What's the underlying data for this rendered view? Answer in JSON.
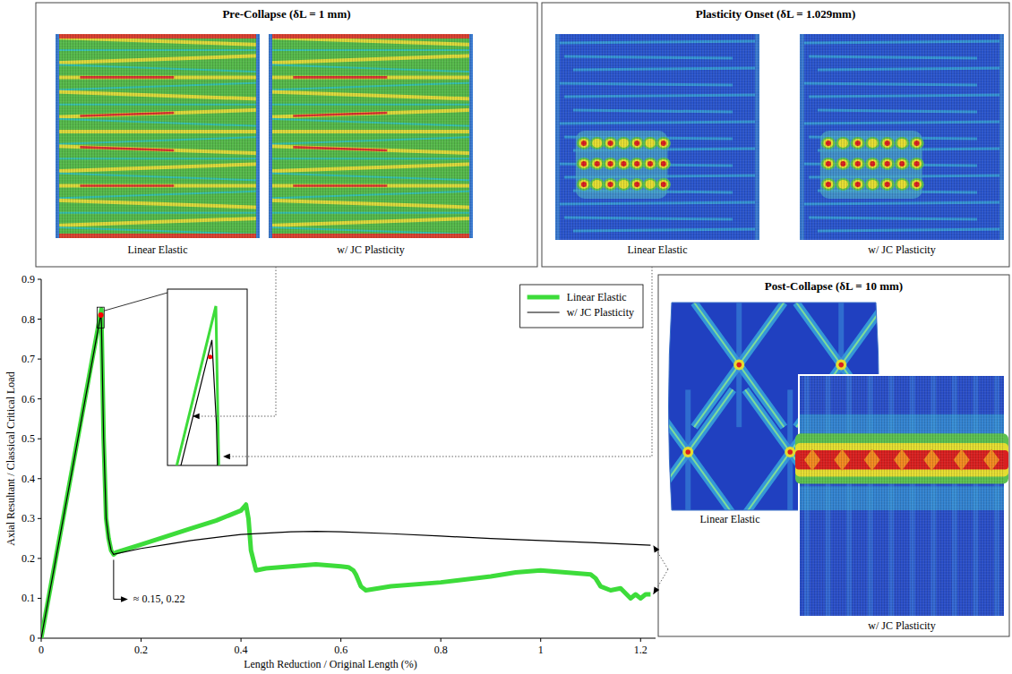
{
  "chart_data": {
    "type": "line",
    "x_label": "Length Reduction / Original Length (%)",
    "y_label": "Axial Resultant / Classical Critical Load",
    "xlim": [
      0,
      1.23
    ],
    "xticks": [
      0,
      0.2,
      0.4,
      0.6,
      0.8,
      1,
      1.2
    ],
    "ylim": [
      0,
      0.9
    ],
    "yticks": [
      0,
      0.1,
      0.2,
      0.3,
      0.4,
      0.5,
      0.6,
      0.7,
      0.8,
      0.9
    ],
    "grid": false,
    "legend": "top-right",
    "series": [
      {
        "name": "Linear Elastic",
        "color": "#3ddc3a",
        "line_style": "solid",
        "x": [
          0,
          0.1205,
          0.1212,
          0.125,
          0.13,
          0.135,
          0.14,
          0.145,
          0.15,
          0.2,
          0.25,
          0.3,
          0.35,
          0.4,
          0.41,
          0.415,
          0.42,
          0.43,
          0.45,
          0.5,
          0.55,
          0.6,
          0.615,
          0.625,
          0.63,
          0.64,
          0.65,
          0.7,
          0.8,
          0.9,
          0.95,
          1.0,
          1.05,
          1.1,
          1.11,
          1.12,
          1.14,
          1.16,
          1.18,
          1.19,
          1.2,
          1.21,
          1.22
        ],
        "values": [
          0,
          0.825,
          0.76,
          0.5,
          0.3,
          0.25,
          0.22,
          0.21,
          0.215,
          0.235,
          0.255,
          0.275,
          0.295,
          0.32,
          0.335,
          0.3,
          0.22,
          0.17,
          0.175,
          0.18,
          0.185,
          0.18,
          0.178,
          0.17,
          0.16,
          0.13,
          0.12,
          0.13,
          0.14,
          0.155,
          0.165,
          0.17,
          0.165,
          0.16,
          0.15,
          0.13,
          0.12,
          0.125,
          0.1,
          0.11,
          0.1,
          0.11,
          0.11
        ]
      },
      {
        "name": "w/ JC Plasticity",
        "color": "#000000",
        "line_style": "solid",
        "x": [
          0,
          0.1198,
          0.1206,
          0.125,
          0.13,
          0.135,
          0.14,
          0.145,
          0.15,
          0.2,
          0.25,
          0.3,
          0.4,
          0.5,
          0.55,
          0.6,
          0.7,
          0.8,
          0.9,
          1.0,
          1.1,
          1.22
        ],
        "values": [
          0,
          0.815,
          0.79,
          0.5,
          0.3,
          0.25,
          0.22,
          0.21,
          0.212,
          0.225,
          0.235,
          0.245,
          0.26,
          0.267,
          0.268,
          0.267,
          0.262,
          0.256,
          0.25,
          0.245,
          0.24,
          0.233
        ]
      }
    ],
    "annotations": [
      {
        "text": "≈ 0.15, 0.22",
        "x": 0.145,
        "y": 0.21
      },
      {
        "x": 0.1195,
        "y": 0.81,
        "color": "#ff0000",
        "marker": "circle"
      }
    ],
    "inset": {
      "xlim": [
        0.112,
        0.126
      ],
      "ylim": [
        0.778,
        0.83
      ]
    }
  },
  "panels": [
    {
      "title": "Pre-Collapse (δL = 1 mm)",
      "captions": [
        "Linear Elastic",
        "w/ JC Plasticity"
      ]
    },
    {
      "title": "Plasticity Onset (δL = 1.029mm)",
      "captions": [
        "Linear Elastic",
        "w/ JC Plasticity"
      ]
    },
    {
      "title": "Post-Collapse (δL = 10 mm)",
      "captions": [
        "Linear Elastic",
        "w/ JC Plasticity"
      ]
    }
  ]
}
